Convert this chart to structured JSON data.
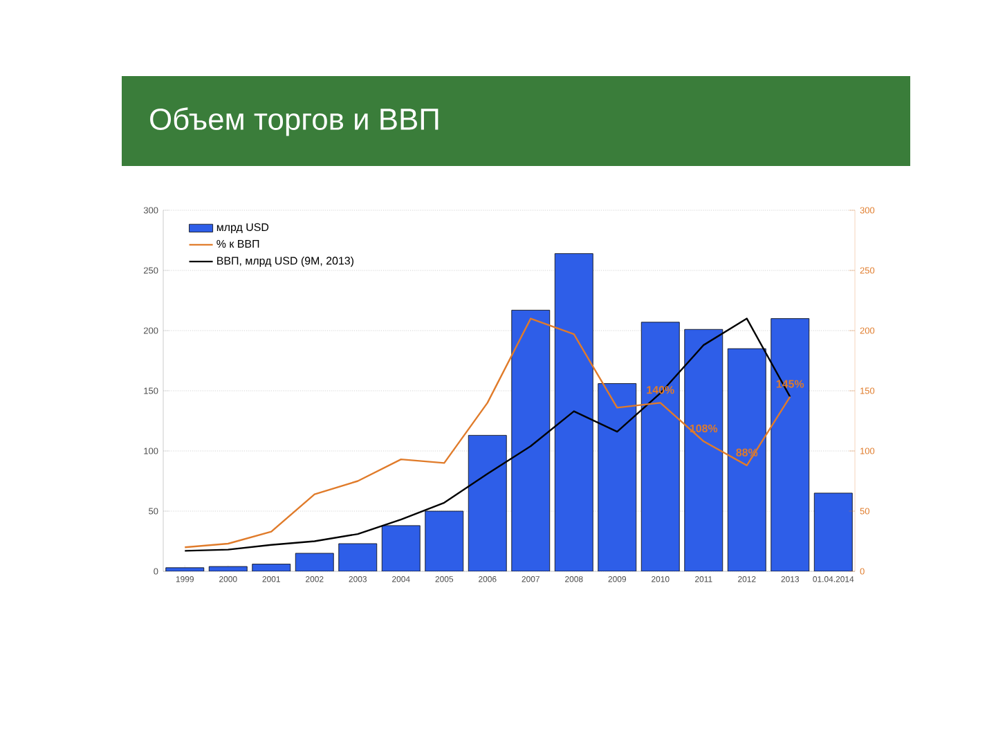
{
  "chart_data": {
    "type": "bar",
    "title": "Объем торгов и ВВП",
    "categories": [
      "1999",
      "2000",
      "2001",
      "2002",
      "2003",
      "2004",
      "2005",
      "2006",
      "2007",
      "2008",
      "2009",
      "2010",
      "2011",
      "2012",
      "2013",
      "01.04.2014"
    ],
    "series": [
      {
        "name": "млрд USD",
        "color": "#2e5ee8",
        "values": [
          3,
          4,
          6,
          15,
          23,
          38,
          50,
          113,
          217,
          264,
          156,
          207,
          201,
          185,
          210,
          65
        ]
      },
      {
        "name": "% к ВВП",
        "type": "line",
        "axis": "y2",
        "color": "#e07b2a",
        "values": [
          20,
          23,
          33,
          64,
          75,
          93,
          90,
          140,
          210,
          197,
          136,
          140,
          108,
          88,
          145,
          null
        ],
        "value_labels": [
          null,
          null,
          null,
          null,
          null,
          null,
          null,
          null,
          null,
          null,
          null,
          "140%",
          "108%",
          "88%",
          "145%",
          null
        ]
      },
      {
        "name": "ВВП, млрд USD (9M, 2013)",
        "type": "line",
        "color": "#000000",
        "values": [
          17,
          18,
          22,
          25,
          31,
          43,
          57,
          81,
          104,
          133,
          116,
          148,
          188,
          210,
          145,
          null
        ]
      }
    ],
    "ylim": [
      0,
      300
    ],
    "yticks": [
      0,
      50,
      100,
      150,
      200,
      250,
      300
    ],
    "y2lim": [
      0,
      300
    ],
    "y2ticks": [
      0,
      50,
      100,
      150,
      200,
      250,
      300
    ],
    "grid": "y",
    "legend": "top left",
    "marker": "none",
    "line_style": "solid"
  }
}
